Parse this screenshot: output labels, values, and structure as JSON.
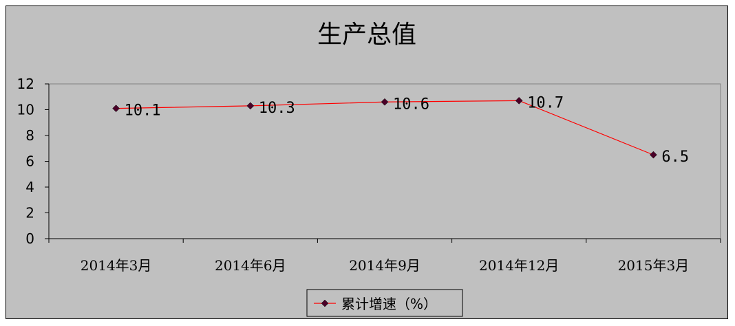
{
  "chart_data": {
    "type": "line",
    "title": "生产总值",
    "categories": [
      "2014年3月",
      "2014年6月",
      "2014年9月",
      "2014年12月",
      "2015年3月"
    ],
    "series": [
      {
        "name": "累计增速（%）",
        "values": [
          10.1,
          10.3,
          10.6,
          10.7,
          6.5
        ],
        "color": "#ff0000",
        "marker_color": "#4a0028"
      }
    ],
    "data_labels": [
      "10.1",
      "10.3",
      "10.6",
      "10.7",
      "6.5"
    ],
    "ylim": [
      0,
      12
    ],
    "yticks": [
      0,
      2,
      4,
      6,
      8,
      10,
      12
    ],
    "grid": false,
    "legend_position": "bottom"
  },
  "colors": {
    "background": "#c0c0c0",
    "plot_background": "#c0c0c0",
    "axis": "#000000"
  }
}
